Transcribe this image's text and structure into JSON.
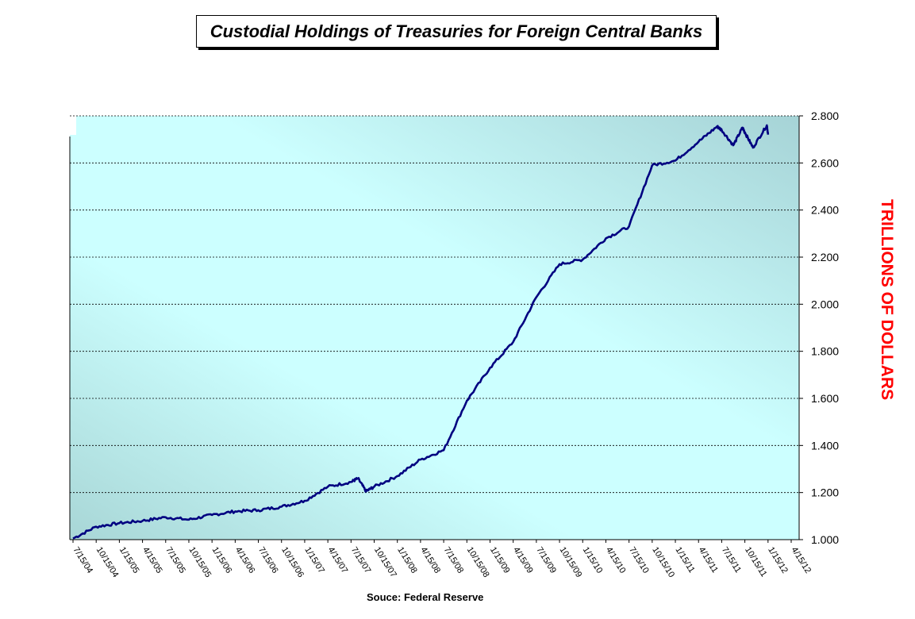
{
  "chart_data": {
    "type": "line",
    "title": "Custodial Holdings of Treasuries for Foreign Central Banks",
    "ylabel": "TRILLIONS OF DOLLARS",
    "xlabel": "",
    "source": "Souce: Federal Reserve",
    "ylim": [
      1.0,
      2.8
    ],
    "y_ticks": [
      "1.000",
      "1.200",
      "1.400",
      "1.600",
      "1.800",
      "2.000",
      "2.200",
      "2.400",
      "2.600",
      "2.800"
    ],
    "y_axis_side": "right",
    "grid": "horizontal dashed",
    "legend": "none",
    "x_ticks": [
      "7/15/04",
      "10/15/04",
      "1/15/05",
      "4/15/05",
      "7/15/05",
      "10/15/05",
      "1/15/06",
      "4/15/06",
      "7/15/06",
      "10/15/06",
      "1/15/07",
      "4/15/07",
      "7/15/07",
      "10/15/07",
      "1/15/08",
      "4/15/08",
      "7/15/08",
      "10/15/08",
      "1/15/09",
      "4/15/09",
      "7/15/09",
      "10/15/09",
      "1/15/10",
      "4/15/10",
      "7/15/10",
      "10/15/10",
      "1/15/11",
      "4/15/11",
      "7/15/11",
      "10/15/11",
      "1/15/12",
      "4/15/12"
    ],
    "series": [
      {
        "color": "#000080",
        "x": [
          "7/15/04",
          "10/15/04",
          "1/15/05",
          "4/15/05",
          "7/15/05",
          "10/15/05",
          "1/15/06",
          "4/15/06",
          "7/15/06",
          "10/15/06",
          "1/15/07",
          "4/15/07",
          "7/15/07",
          "10/15/07",
          "1/15/08",
          "4/15/08",
          "7/15/08",
          "10/15/08",
          "1/15/09",
          "4/15/09",
          "7/15/09",
          "10/15/09",
          "1/15/10",
          "4/15/10",
          "7/15/10",
          "10/15/10",
          "1/15/11",
          "4/15/11",
          "7/15/11",
          "10/15/11",
          "1/15/12"
        ],
        "values": [
          1.005,
          1.055,
          1.07,
          1.08,
          1.095,
          1.085,
          1.105,
          1.12,
          1.125,
          1.14,
          1.165,
          1.225,
          1.245,
          1.225,
          1.27,
          1.34,
          1.38,
          1.59,
          1.73,
          1.84,
          2.03,
          2.17,
          2.19,
          2.28,
          2.33,
          2.59,
          2.61,
          2.69,
          2.74,
          2.73,
          2.72
        ],
        "highlights": {
          "peak_aug_2007": 1.26,
          "dip_sep_2007": 1.205,
          "max_2011": 2.755,
          "dip_late_2011": 2.665,
          "end_value": 2.76
        }
      }
    ]
  },
  "colors": {
    "line": "#000080",
    "grid": "#000000",
    "ylabel": "#ff0000",
    "bg_light": "#ccffff",
    "bg_dark": "#a9d8d8"
  }
}
